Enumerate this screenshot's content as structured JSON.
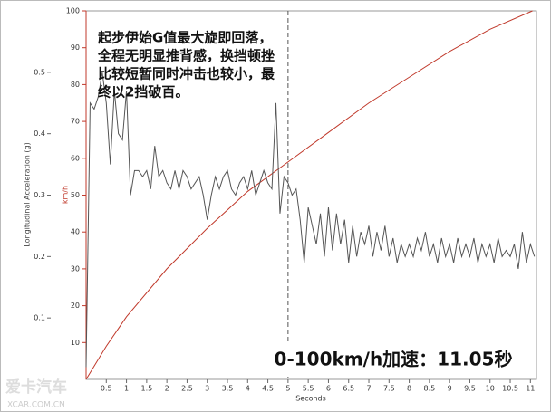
{
  "chart_data": {
    "type": "line",
    "annotation": [
      "起步伊始G值最大旋即回落，",
      "全程无明显推背感，换挡顿挫",
      "比较短暂同时冲击也较小，最",
      "终以2挡破百。"
    ],
    "result_label": "0-100km/h加速：11.05秒",
    "watermark": [
      "爱卡汽车",
      "XCAR.COM.CN"
    ],
    "xlabel": "Seconds",
    "ylabel": "km/h",
    "y2label": "Longitudinal Acceleration (g)",
    "xlim": [
      0,
      11.15
    ],
    "xticks": [
      0.5,
      1,
      1.5,
      2,
      2.5,
      3,
      3.5,
      4,
      4.5,
      5,
      5.5,
      6,
      6.5,
      7,
      7.5,
      8,
      8.5,
      9,
      9.5,
      10,
      10.5,
      11
    ],
    "ylim": [
      0,
      100
    ],
    "yticks": [
      10,
      20,
      30,
      40,
      50,
      60,
      70,
      80,
      90,
      100
    ],
    "y2lim": [
      0,
      0.6
    ],
    "y2ticks": [
      0.1,
      0.2,
      0.3,
      0.4,
      0.5
    ],
    "marker_x": 5,
    "series": [
      {
        "color": "#c0392b",
        "axis": "y",
        "x": [
          0,
          0.5,
          1,
          2,
          3,
          4,
          5,
          6,
          7,
          8,
          9,
          10,
          11.05
        ],
        "values": [
          0,
          9,
          17,
          30,
          41,
          51,
          59,
          67,
          75,
          82,
          89,
          95,
          100
        ]
      },
      {
        "color": "#555555",
        "axis": "y2",
        "x": [
          0,
          0.1,
          0.2,
          0.3,
          0.4,
          0.5,
          0.6,
          0.7,
          0.8,
          0.9,
          1.0,
          1.1,
          1.2,
          1.3,
          1.4,
          1.5,
          1.6,
          1.7,
          1.8,
          1.9,
          2.0,
          2.1,
          2.2,
          2.3,
          2.4,
          2.5,
          2.6,
          2.7,
          2.8,
          2.9,
          3.0,
          3.1,
          3.2,
          3.3,
          3.4,
          3.5,
          3.6,
          3.7,
          3.8,
          3.9,
          4.0,
          4.1,
          4.2,
          4.3,
          4.4,
          4.5,
          4.6,
          4.7,
          4.8,
          4.9,
          5.0,
          5.1,
          5.2,
          5.3,
          5.4,
          5.5,
          5.6,
          5.7,
          5.8,
          5.9,
          6.0,
          6.1,
          6.2,
          6.3,
          6.4,
          6.5,
          6.6,
          6.7,
          6.8,
          6.9,
          7.0,
          7.1,
          7.2,
          7.3,
          7.4,
          7.5,
          7.6,
          7.7,
          7.8,
          7.9,
          8.0,
          8.1,
          8.2,
          8.3,
          8.4,
          8.5,
          8.6,
          8.7,
          8.8,
          8.9,
          9.0,
          9.1,
          9.2,
          9.3,
          9.4,
          9.5,
          9.6,
          9.7,
          9.8,
          9.9,
          10.0,
          10.1,
          10.2,
          10.3,
          10.4,
          10.5,
          10.6,
          10.7,
          10.8,
          10.9,
          11.0,
          11.1
        ],
        "values": [
          0.02,
          0.45,
          0.44,
          0.46,
          0.5,
          0.45,
          0.35,
          0.47,
          0.4,
          0.39,
          0.47,
          0.3,
          0.34,
          0.34,
          0.33,
          0.34,
          0.31,
          0.38,
          0.33,
          0.34,
          0.32,
          0.31,
          0.34,
          0.31,
          0.34,
          0.33,
          0.31,
          0.32,
          0.33,
          0.3,
          0.26,
          0.3,
          0.33,
          0.31,
          0.33,
          0.34,
          0.31,
          0.3,
          0.32,
          0.33,
          0.31,
          0.34,
          0.3,
          0.32,
          0.34,
          0.32,
          0.31,
          0.45,
          0.27,
          0.33,
          0.32,
          0.3,
          0.31,
          0.26,
          0.19,
          0.28,
          0.25,
          0.22,
          0.27,
          0.2,
          0.28,
          0.21,
          0.27,
          0.22,
          0.26,
          0.19,
          0.25,
          0.2,
          0.24,
          0.22,
          0.25,
          0.2,
          0.24,
          0.21,
          0.25,
          0.2,
          0.23,
          0.19,
          0.22,
          0.2,
          0.22,
          0.2,
          0.23,
          0.21,
          0.24,
          0.2,
          0.22,
          0.19,
          0.23,
          0.2,
          0.22,
          0.19,
          0.23,
          0.2,
          0.22,
          0.2,
          0.23,
          0.19,
          0.22,
          0.2,
          0.22,
          0.19,
          0.23,
          0.2,
          0.21,
          0.2,
          0.22,
          0.18,
          0.24,
          0.19,
          0.22,
          0.2
        ]
      }
    ]
  }
}
